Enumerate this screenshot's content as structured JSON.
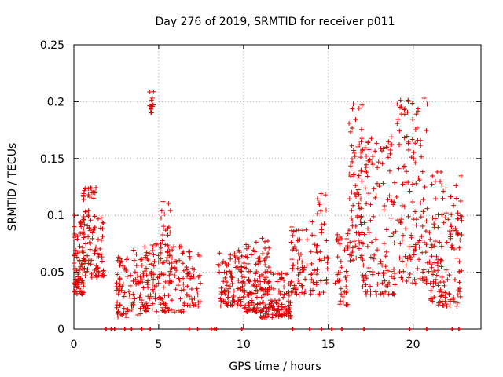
{
  "chart_data": {
    "type": "scatter",
    "title": "Day 276 of 2019, SRMTID for receiver p011",
    "xlabel": "GPS time / hours",
    "ylabel": "SRMTID / TECUs",
    "xlim": [
      0,
      24
    ],
    "ylim": [
      0,
      0.25
    ],
    "xticks": [
      0,
      5,
      10,
      15,
      20
    ],
    "xtick_labels": [
      "0",
      "5",
      "10",
      "15",
      "20"
    ],
    "yticks": [
      0,
      0.05,
      0.1,
      0.15,
      0.2,
      0.25
    ],
    "ytick_labels": [
      "0",
      "0.05",
      "0.1",
      "0.15",
      "0.2",
      "0.25"
    ],
    "grid": true,
    "marker": "+",
    "color": "#dd0000",
    "clusters": [
      {
        "x_range": [
          0.0,
          0.6
        ],
        "y_range": [
          0.03,
          0.1
        ],
        "count": 80
      },
      {
        "x_range": [
          0.5,
          1.3
        ],
        "y_range": [
          0.045,
          0.125
        ],
        "count": 70
      },
      {
        "x_range": [
          1.2,
          1.8
        ],
        "y_range": [
          0.045,
          0.1
        ],
        "count": 40
      },
      {
        "x_range": [
          2.5,
          4.0
        ],
        "y_range": [
          0.01,
          0.07
        ],
        "count": 90
      },
      {
        "x_range": [
          4.4,
          4.7
        ],
        "y_range": [
          0.19,
          0.21
        ],
        "count": 14
      },
      {
        "x_range": [
          4.0,
          6.5
        ],
        "y_range": [
          0.015,
          0.075
        ],
        "count": 150
      },
      {
        "x_range": [
          5.0,
          5.7
        ],
        "y_range": [
          0.06,
          0.115
        ],
        "count": 20
      },
      {
        "x_range": [
          6.5,
          7.5
        ],
        "y_range": [
          0.02,
          0.07
        ],
        "count": 40
      },
      {
        "x_range": [
          8.5,
          10.0
        ],
        "y_range": [
          0.02,
          0.07
        ],
        "count": 100
      },
      {
        "x_range": [
          10.0,
          11.5
        ],
        "y_range": [
          0.015,
          0.08
        ],
        "count": 110
      },
      {
        "x_range": [
          11.0,
          12.8
        ],
        "y_range": [
          0.01,
          0.05
        ],
        "count": 120
      },
      {
        "x_range": [
          12.8,
          14.0
        ],
        "y_range": [
          0.03,
          0.09
        ],
        "count": 60
      },
      {
        "x_range": [
          14.0,
          15.0
        ],
        "y_range": [
          0.03,
          0.12
        ],
        "count": 50
      },
      {
        "x_range": [
          15.4,
          16.2
        ],
        "y_range": [
          0.02,
          0.085
        ],
        "count": 40
      },
      {
        "x_range": [
          16.2,
          17.0
        ],
        "y_range": [
          0.06,
          0.2
        ],
        "count": 80
      },
      {
        "x_range": [
          17.0,
          19.0
        ],
        "y_range": [
          0.03,
          0.17
        ],
        "count": 130
      },
      {
        "x_range": [
          19.0,
          21.0
        ],
        "y_range": [
          0.04,
          0.205
        ],
        "count": 130
      },
      {
        "x_range": [
          21.0,
          22.9
        ],
        "y_range": [
          0.02,
          0.14
        ],
        "count": 140
      }
    ],
    "zero_values_x": [
      1.9,
      2.2,
      2.4,
      3.0,
      3.4,
      4.0,
      4.5,
      6.8,
      7.3,
      8.1,
      8.3,
      8.4,
      9.9,
      12.9,
      13.9,
      14.6,
      15.2,
      15.8,
      17.1,
      19.8,
      20.8,
      22.3,
      22.7
    ]
  }
}
